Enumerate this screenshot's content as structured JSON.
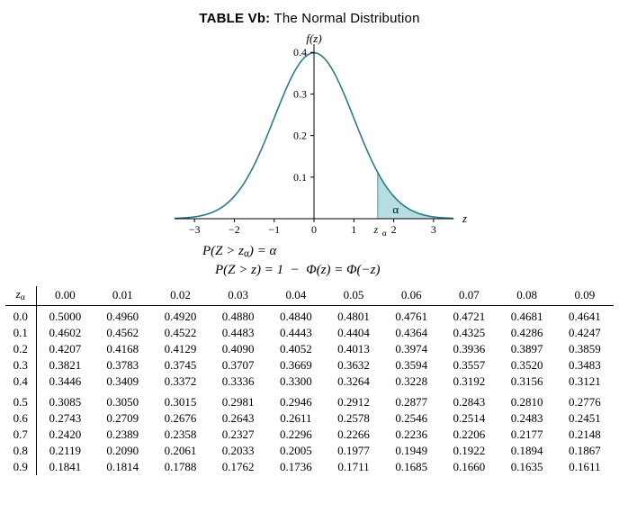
{
  "title_prefix": "TABLE Vb:",
  "title_rest": " The Normal Distribution",
  "chart": {
    "type": "line",
    "y_label": "f(z)",
    "x_label": "z",
    "curve_color": "#2a7a8a",
    "curve_width": 1.6,
    "axis_color": "#000000",
    "shade_fill": "#b7dfe3",
    "shade_stroke": "#2a7a8a",
    "alpha_label": "α",
    "z_alpha_label": "z",
    "xticks": [
      -3,
      -2,
      -1,
      0,
      1,
      2,
      3
    ],
    "yticks": [
      0.1,
      0.2,
      0.3,
      0.4
    ],
    "z_alpha_tick_pos": 1.6,
    "xlim": [
      -3.5,
      3.5
    ],
    "ylim": [
      0,
      0.42
    ],
    "tick_fontsize": 12
  },
  "eq1": "P(Z > zₐ) = α",
  "eq2": "P(Z > z) = 1 − Φ(z) = Φ(−z)",
  "table": {
    "corner_label": "zₐ",
    "col_headers": [
      "0.00",
      "0.01",
      "0.02",
      "0.03",
      "0.04",
      "0.05",
      "0.06",
      "0.07",
      "0.08",
      "0.09"
    ],
    "groups": [
      {
        "rows": [
          {
            "lbl": "0.0",
            "cells": [
              "0.5000",
              "0.4960",
              "0.4920",
              "0.4880",
              "0.4840",
              "0.4801",
              "0.4761",
              "0.4721",
              "0.4681",
              "0.4641"
            ]
          },
          {
            "lbl": "0.1",
            "cells": [
              "0.4602",
              "0.4562",
              "0.4522",
              "0.4483",
              "0.4443",
              "0.4404",
              "0.4364",
              "0.4325",
              "0.4286",
              "0.4247"
            ]
          },
          {
            "lbl": "0.2",
            "cells": [
              "0.4207",
              "0.4168",
              "0.4129",
              "0.4090",
              "0.4052",
              "0.4013",
              "0.3974",
              "0.3936",
              "0.3897",
              "0.3859"
            ]
          },
          {
            "lbl": "0.3",
            "cells": [
              "0.3821",
              "0.3783",
              "0.3745",
              "0.3707",
              "0.3669",
              "0.3632",
              "0.3594",
              "0.3557",
              "0.3520",
              "0.3483"
            ]
          },
          {
            "lbl": "0.4",
            "cells": [
              "0.3446",
              "0.3409",
              "0.3372",
              "0.3336",
              "0.3300",
              "0.3264",
              "0.3228",
              "0.3192",
              "0.3156",
              "0.3121"
            ]
          }
        ]
      },
      {
        "rows": [
          {
            "lbl": "0.5",
            "cells": [
              "0.3085",
              "0.3050",
              "0.3015",
              "0.2981",
              "0.2946",
              "0.2912",
              "0.2877",
              "0.2843",
              "0.2810",
              "0.2776"
            ]
          },
          {
            "lbl": "0.6",
            "cells": [
              "0.2743",
              "0.2709",
              "0.2676",
              "0.2643",
              "0.2611",
              "0.2578",
              "0.2546",
              "0.2514",
              "0.2483",
              "0.2451"
            ]
          },
          {
            "lbl": "0.7",
            "cells": [
              "0.2420",
              "0.2389",
              "0.2358",
              "0.2327",
              "0.2296",
              "0.2266",
              "0.2236",
              "0.2206",
              "0.2177",
              "0.2148"
            ]
          },
          {
            "lbl": "0.8",
            "cells": [
              "0.2119",
              "0.2090",
              "0.2061",
              "0.2033",
              "0.2005",
              "0.1977",
              "0.1949",
              "0.1922",
              "0.1894",
              "0.1867"
            ]
          },
          {
            "lbl": "0.9",
            "cells": [
              "0.1841",
              "0.1814",
              "0.1788",
              "0.1762",
              "0.1736",
              "0.1711",
              "0.1685",
              "0.1660",
              "0.1635",
              "0.1611"
            ]
          }
        ]
      }
    ]
  }
}
